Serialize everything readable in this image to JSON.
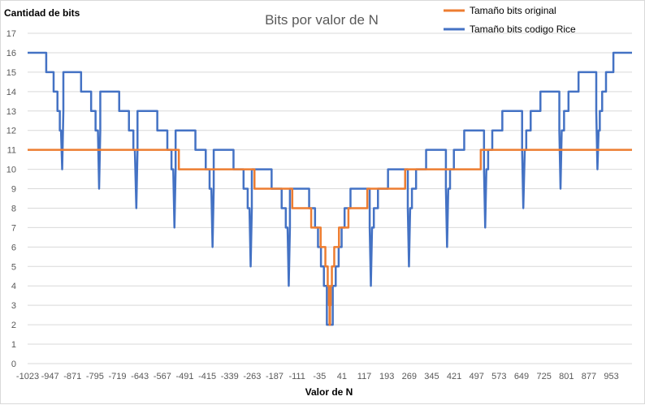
{
  "chart_data": {
    "type": "line",
    "title": "Bits por valor de N",
    "xlabel": "Valor de N",
    "ylabel": "Cantidad de bits",
    "ylim": [
      0,
      17
    ],
    "xlim": [
      -1023,
      1023
    ],
    "grid": true,
    "legend_position": "top-right",
    "x_tick_labels": [
      "-1023",
      "-947",
      "-871",
      "-795",
      "-719",
      "-643",
      "-567",
      "-491",
      "-415",
      "-339",
      "-263",
      "-187",
      "-111",
      "-35",
      "41",
      "117",
      "193",
      "269",
      "345",
      "421",
      "497",
      "573",
      "649",
      "725",
      "801",
      "877",
      "953"
    ],
    "y_tick_labels": [
      "0",
      "1",
      "2",
      "3",
      "4",
      "5",
      "6",
      "7",
      "8",
      "9",
      "10",
      "11",
      "12",
      "13",
      "14",
      "15",
      "16",
      "17"
    ],
    "series": [
      {
        "name": "Tamaño bits original",
        "color": "#ED7D31",
        "points": [
          [
            -1023,
            11
          ],
          [
            -511,
            11
          ],
          [
            -511,
            10
          ],
          [
            -255,
            10
          ],
          [
            -255,
            9
          ],
          [
            -127,
            9
          ],
          [
            -127,
            8
          ],
          [
            -63,
            8
          ],
          [
            -63,
            7
          ],
          [
            -31,
            7
          ],
          [
            -31,
            6
          ],
          [
            -15,
            6
          ],
          [
            -15,
            5
          ],
          [
            -7,
            5
          ],
          [
            -7,
            4
          ],
          [
            -3,
            4
          ],
          [
            -3,
            3
          ],
          [
            -1,
            3
          ],
          [
            -1,
            2
          ],
          [
            1,
            2
          ],
          [
            1,
            3
          ],
          [
            3,
            3
          ],
          [
            3,
            4
          ],
          [
            7,
            4
          ],
          [
            7,
            5
          ],
          [
            15,
            5
          ],
          [
            15,
            6
          ],
          [
            31,
            6
          ],
          [
            31,
            7
          ],
          [
            63,
            7
          ],
          [
            63,
            8
          ],
          [
            127,
            8
          ],
          [
            127,
            9
          ],
          [
            255,
            9
          ],
          [
            255,
            10
          ],
          [
            511,
            10
          ],
          [
            511,
            11
          ],
          [
            1023,
            11
          ]
        ]
      },
      {
        "name": "Tamaño bits codigo Rice",
        "color": "#4472C4",
        "points": [
          [
            -1023,
            16
          ],
          [
            -960,
            16
          ],
          [
            -960,
            15
          ],
          [
            -935,
            15
          ],
          [
            -935,
            14
          ],
          [
            -922,
            14
          ],
          [
            -922,
            13
          ],
          [
            -914,
            13
          ],
          [
            -914,
            12
          ],
          [
            -910,
            12
          ],
          [
            -906,
            10
          ],
          [
            -902,
            13
          ],
          [
            -902,
            15
          ],
          [
            -842,
            15
          ],
          [
            -842,
            14
          ],
          [
            -808,
            14
          ],
          [
            -808,
            13
          ],
          [
            -793,
            13
          ],
          [
            -793,
            12
          ],
          [
            -785,
            12
          ],
          [
            -781,
            9
          ],
          [
            -777,
            12
          ],
          [
            -777,
            14
          ],
          [
            -713,
            14
          ],
          [
            -713,
            13
          ],
          [
            -680,
            13
          ],
          [
            -680,
            12
          ],
          [
            -665,
            12
          ],
          [
            -665,
            11
          ],
          [
            -660,
            11
          ],
          [
            -655,
            8
          ],
          [
            -651,
            11
          ],
          [
            -651,
            13
          ],
          [
            -584,
            13
          ],
          [
            -584,
            12
          ],
          [
            -550,
            12
          ],
          [
            -550,
            11
          ],
          [
            -536,
            11
          ],
          [
            -536,
            10
          ],
          [
            -530,
            10
          ],
          [
            -526,
            7
          ],
          [
            -522,
            10
          ],
          [
            -522,
            12
          ],
          [
            -455,
            12
          ],
          [
            -455,
            11
          ],
          [
            -420,
            11
          ],
          [
            -420,
            10
          ],
          [
            -407,
            10
          ],
          [
            -407,
            9
          ],
          [
            -401,
            9
          ],
          [
            -397,
            6
          ],
          [
            -393,
            9
          ],
          [
            -393,
            11
          ],
          [
            -326,
            11
          ],
          [
            -326,
            10
          ],
          [
            -292,
            10
          ],
          [
            -292,
            9
          ],
          [
            -278,
            9
          ],
          [
            -278,
            8
          ],
          [
            -272,
            8
          ],
          [
            -268,
            5
          ],
          [
            -264,
            8
          ],
          [
            -264,
            10
          ],
          [
            -197,
            10
          ],
          [
            -197,
            9
          ],
          [
            -163,
            9
          ],
          [
            -163,
            8
          ],
          [
            -149,
            8
          ],
          [
            -149,
            7
          ],
          [
            -143,
            7
          ],
          [
            -139,
            4
          ],
          [
            -135,
            7
          ],
          [
            -135,
            9
          ],
          [
            -70,
            9
          ],
          [
            -70,
            8
          ],
          [
            -50,
            8
          ],
          [
            -50,
            7
          ],
          [
            -40,
            7
          ],
          [
            -40,
            6
          ],
          [
            -30,
            6
          ],
          [
            -30,
            5
          ],
          [
            -20,
            5
          ],
          [
            -20,
            4
          ],
          [
            -10,
            4
          ],
          [
            -10,
            2
          ],
          [
            10,
            2
          ],
          [
            10,
            4
          ],
          [
            20,
            4
          ],
          [
            20,
            5
          ],
          [
            30,
            5
          ],
          [
            30,
            6
          ],
          [
            40,
            6
          ],
          [
            40,
            7
          ],
          [
            50,
            7
          ],
          [
            50,
            8
          ],
          [
            70,
            8
          ],
          [
            70,
            9
          ],
          [
            135,
            9
          ],
          [
            135,
            7
          ],
          [
            139,
            4
          ],
          [
            143,
            7
          ],
          [
            149,
            7
          ],
          [
            149,
            8
          ],
          [
            163,
            8
          ],
          [
            163,
            9
          ],
          [
            197,
            9
          ],
          [
            197,
            10
          ],
          [
            264,
            10
          ],
          [
            264,
            8
          ],
          [
            268,
            5
          ],
          [
            272,
            8
          ],
          [
            278,
            8
          ],
          [
            278,
            9
          ],
          [
            292,
            9
          ],
          [
            292,
            10
          ],
          [
            326,
            10
          ],
          [
            326,
            11
          ],
          [
            393,
            11
          ],
          [
            393,
            9
          ],
          [
            397,
            6
          ],
          [
            401,
            9
          ],
          [
            407,
            9
          ],
          [
            407,
            10
          ],
          [
            420,
            10
          ],
          [
            420,
            11
          ],
          [
            455,
            11
          ],
          [
            455,
            12
          ],
          [
            522,
            12
          ],
          [
            522,
            10
          ],
          [
            526,
            7
          ],
          [
            530,
            10
          ],
          [
            536,
            10
          ],
          [
            536,
            11
          ],
          [
            550,
            11
          ],
          [
            550,
            12
          ],
          [
            584,
            12
          ],
          [
            584,
            13
          ],
          [
            651,
            13
          ],
          [
            651,
            11
          ],
          [
            655,
            8
          ],
          [
            660,
            11
          ],
          [
            665,
            11
          ],
          [
            665,
            12
          ],
          [
            680,
            12
          ],
          [
            680,
            13
          ],
          [
            713,
            13
          ],
          [
            713,
            14
          ],
          [
            777,
            14
          ],
          [
            777,
            12
          ],
          [
            781,
            9
          ],
          [
            785,
            12
          ],
          [
            793,
            12
          ],
          [
            793,
            13
          ],
          [
            808,
            13
          ],
          [
            808,
            14
          ],
          [
            842,
            14
          ],
          [
            842,
            15
          ],
          [
            902,
            15
          ],
          [
            902,
            13
          ],
          [
            906,
            10
          ],
          [
            910,
            12
          ],
          [
            914,
            12
          ],
          [
            914,
            13
          ],
          [
            922,
            13
          ],
          [
            922,
            14
          ],
          [
            935,
            14
          ],
          [
            935,
            15
          ],
          [
            960,
            15
          ],
          [
            960,
            16
          ],
          [
            1023,
            16
          ]
        ]
      }
    ]
  }
}
